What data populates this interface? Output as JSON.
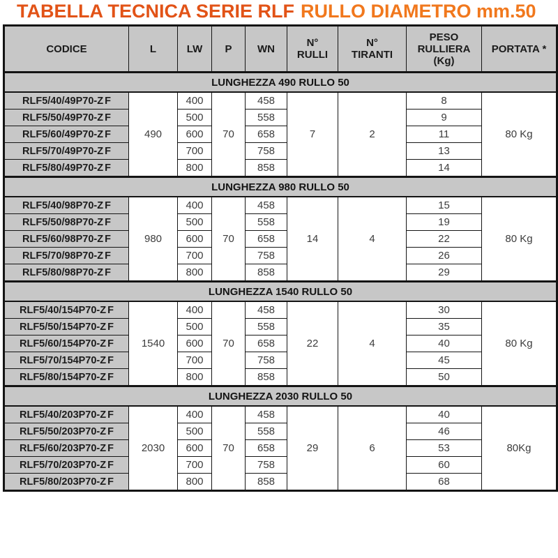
{
  "title": {
    "part1": "TABELLA TECNICA SERIE RLF",
    "part2": "RULLO DIAMETRO mm.50"
  },
  "colors": {
    "title_part1": "#e25317",
    "title_part2": "#f1781d",
    "header_bg": "#c7c7c7",
    "band_bg": "#c7c7c7",
    "code_bg": "#c7c7c7",
    "table_border": "#141414",
    "code_text": "#1c1c1c",
    "value_text": "#3c3c3c"
  },
  "header": {
    "codice": "CODICE",
    "l": "L",
    "lw": "LW",
    "p": "P",
    "wn": "WN",
    "n_rulli": "N°\nRULLI",
    "n_tiranti": "N°\nTIRANTI",
    "peso_rulliera": "PESO\nRULLIERA\n(Kg)",
    "portata": "PORTATA *"
  },
  "sections": [
    {
      "title": "LUNGHEZZA 490 RULLO 50",
      "l": "490",
      "p": "70",
      "rulli": "7",
      "tiranti": "2",
      "portata": "80 Kg",
      "rows": [
        {
          "code": "RLF5/40/49P70-ZF",
          "lw": "400",
          "wn": "458",
          "peso": "8"
        },
        {
          "code": "RLF5/50/49P70-ZF",
          "lw": "500",
          "wn": "558",
          "peso": "9"
        },
        {
          "code": "RLF5/60/49P70-ZF",
          "lw": "600",
          "wn": "658",
          "peso": "11"
        },
        {
          "code": "RLF5/70/49P70-ZF",
          "lw": "700",
          "wn": "758",
          "peso": "13"
        },
        {
          "code": "RLF5/80/49P70-ZF",
          "lw": "800",
          "wn": "858",
          "peso": "14"
        }
      ]
    },
    {
      "title": "LUNGHEZZA 980 RULLO 50",
      "l": "980",
      "p": "70",
      "rulli": "14",
      "tiranti": "4",
      "portata": "80 Kg",
      "rows": [
        {
          "code": "RLF5/40/98P70-ZF",
          "lw": "400",
          "wn": "458",
          "peso": "15"
        },
        {
          "code": "RLF5/50/98P70-ZF",
          "lw": "500",
          "wn": "558",
          "peso": "19"
        },
        {
          "code": "RLF5/60/98P70-ZF",
          "lw": "600",
          "wn": "658",
          "peso": "22"
        },
        {
          "code": "RLF5/70/98P70-ZF",
          "lw": "700",
          "wn": "758",
          "peso": "26"
        },
        {
          "code": "RLF5/80/98P70-ZF",
          "lw": "800",
          "wn": "858",
          "peso": "29"
        }
      ]
    },
    {
      "title": "LUNGHEZZA 1540 RULLO 50",
      "l": "1540",
      "p": "70",
      "rulli": "22",
      "tiranti": "4",
      "portata": "80 Kg",
      "rows": [
        {
          "code": "RLF5/40/154P70-ZF",
          "lw": "400",
          "wn": "458",
          "peso": "30"
        },
        {
          "code": "RLF5/50/154P70-ZF",
          "lw": "500",
          "wn": "558",
          "peso": "35"
        },
        {
          "code": "RLF5/60/154P70-ZF",
          "lw": "600",
          "wn": "658",
          "peso": "40"
        },
        {
          "code": "RLF5/70/154P70-ZF",
          "lw": "700",
          "wn": "758",
          "peso": "45"
        },
        {
          "code": "RLF5/80/154P70-ZF",
          "lw": "800",
          "wn": "858",
          "peso": "50"
        }
      ]
    },
    {
      "title": "LUNGHEZZA 2030 RULLO 50",
      "l": "2030",
      "p": "70",
      "rulli": "29",
      "tiranti": "6",
      "portata": "80Kg",
      "rows": [
        {
          "code": "RLF5/40/203P70-ZF",
          "lw": "400",
          "wn": "458",
          "peso": "40"
        },
        {
          "code": "RLF5/50/203P70-ZF",
          "lw": "500",
          "wn": "558",
          "peso": "46"
        },
        {
          "code": "RLF5/60/203P70-ZF",
          "lw": "600",
          "wn": "658",
          "peso": "53"
        },
        {
          "code": "RLF5/70/203P70-ZF",
          "lw": "700",
          "wn": "758",
          "peso": "60"
        },
        {
          "code": "RLF5/80/203P70-ZF",
          "lw": "800",
          "wn": "858",
          "peso": "68"
        }
      ]
    }
  ]
}
